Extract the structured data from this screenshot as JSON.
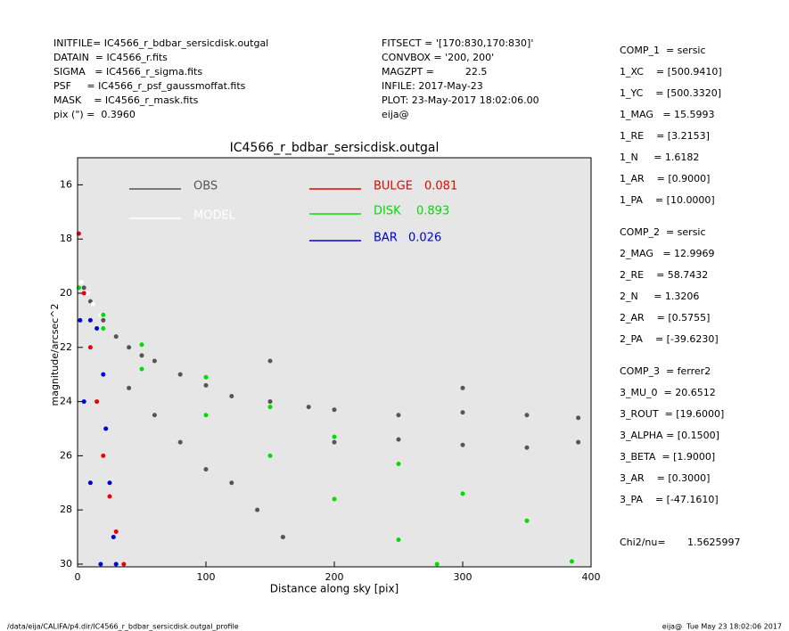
{
  "header": {
    "left": [
      "INITFILE= IC4566_r_bdbar_sersicdisk.outgal",
      "DATAIN  = IC4566_r.fits",
      "SIGMA   = IC4566_r_sigma.fits",
      "PSF     = IC4566_r_psf_gaussmoffat.fits",
      "MASK    = IC4566_r_mask.fits",
      "pix (\") =  0.3960"
    ],
    "middle": [
      "FITSECT = '[170:830,170:830]'",
      "CONVBOX = '200, 200'",
      "MAGZPT =          22.5",
      "INFILE: 2017-May-23",
      "PLOT: 23-May-2017 18:02:06.00",
      "eija@"
    ]
  },
  "parameters": [
    "COMP_1  = sersic",
    "1_XC    = [500.9410]",
    "1_YC    = [500.3320]",
    "1_MAG   = 15.5993",
    "1_RE    = [3.2153]",
    "1_N     = 1.6182",
    "1_AR    = [0.9000]",
    "1_PA    = [10.0000]",
    "COMP_2  = sersic",
    "2_MAG   = 12.9969",
    "2_RE    = 58.7432",
    "2_N     = 1.3206",
    "2_AR    = [0.5755]",
    "2_PA    = [-39.6230]",
    "COMP_3  = ferrer2",
    "3_MU_0  = 20.6512",
    "3_ROUT  = [19.6000]",
    "3_ALPHA = [0.1500]",
    "3_BETA  = [1.9000]",
    "3_AR    = [0.3000]",
    "3_PA    = [-47.1610]",
    "Chi2/nu=       1.5625997"
  ],
  "footer": {
    "left": "/data/eija/CALIFA/p4.dir/IC4566_r_bdbar_sersicdisk.outgal_profile",
    "right": "eija@  Tue May 23 18:02:06 2017"
  },
  "chart_data": {
    "type": "scatter",
    "title": "IC4566_r_bdbar_sersicdisk.outgal",
    "x_label": "Distance along sky [pix]",
    "y_label": "magnitude/arcsec^2",
    "xlim": [
      0,
      400
    ],
    "xticks": [
      0,
      100,
      200,
      300,
      400
    ],
    "ylim": [
      30.1,
      15.0
    ],
    "yticks": [
      16,
      18,
      20,
      22,
      24,
      26,
      28,
      30
    ],
    "background": "#e6e6e6",
    "series": [
      {
        "name": "OBS",
        "color": "#555555",
        "x": [
          5,
          10,
          20,
          30,
          40,
          50,
          60,
          80,
          100,
          120,
          150,
          180,
          200,
          250,
          300,
          350,
          390,
          40,
          60,
          80,
          100,
          120,
          140,
          160,
          200,
          250,
          300,
          350,
          390,
          150,
          300
        ],
        "values": [
          19.8,
          20.3,
          21,
          21.6,
          22,
          22.3,
          22.5,
          23,
          23.4,
          23.8,
          24,
          24.2,
          24.3,
          24.5,
          24.4,
          24.5,
          24.6,
          23.5,
          24.5,
          25.5,
          26.5,
          27,
          28,
          29,
          25.5,
          25.4,
          25.6,
          25.7,
          25.5,
          22.5,
          23.5
        ]
      },
      {
        "name": "MODEL",
        "color": "#ffffff",
        "x": [
          3,
          8,
          12,
          18
        ],
        "values": [
          19.6,
          20,
          20.4,
          20.8
        ]
      },
      {
        "name": "BULGE",
        "fraction": "0.081",
        "color": "#ee0000",
        "x": [
          1,
          5,
          10,
          15,
          20,
          25,
          30,
          36
        ],
        "values": [
          17.8,
          20,
          22,
          24,
          26,
          27.5,
          28.8,
          30
        ]
      },
      {
        "name": "DISK",
        "fraction": "0.893",
        "color": "#00dd00",
        "x": [
          1,
          20,
          50,
          100,
          150,
          200,
          250,
          300,
          350,
          385,
          20,
          50,
          100,
          150,
          200,
          250,
          280
        ],
        "values": [
          19.8,
          20.8,
          21.9,
          23.1,
          24.2,
          25.3,
          26.3,
          27.4,
          28.4,
          29.9,
          21.3,
          22.8,
          24.5,
          26,
          27.6,
          29.1,
          30
        ]
      },
      {
        "name": "BAR",
        "fraction": "0.026",
        "color": "#0000dd",
        "x": [
          2,
          10,
          15,
          20,
          22,
          25,
          28,
          30,
          5,
          10,
          18
        ],
        "values": [
          21,
          21,
          21.3,
          23,
          25,
          27,
          29,
          30,
          24,
          27,
          30
        ]
      }
    ]
  }
}
